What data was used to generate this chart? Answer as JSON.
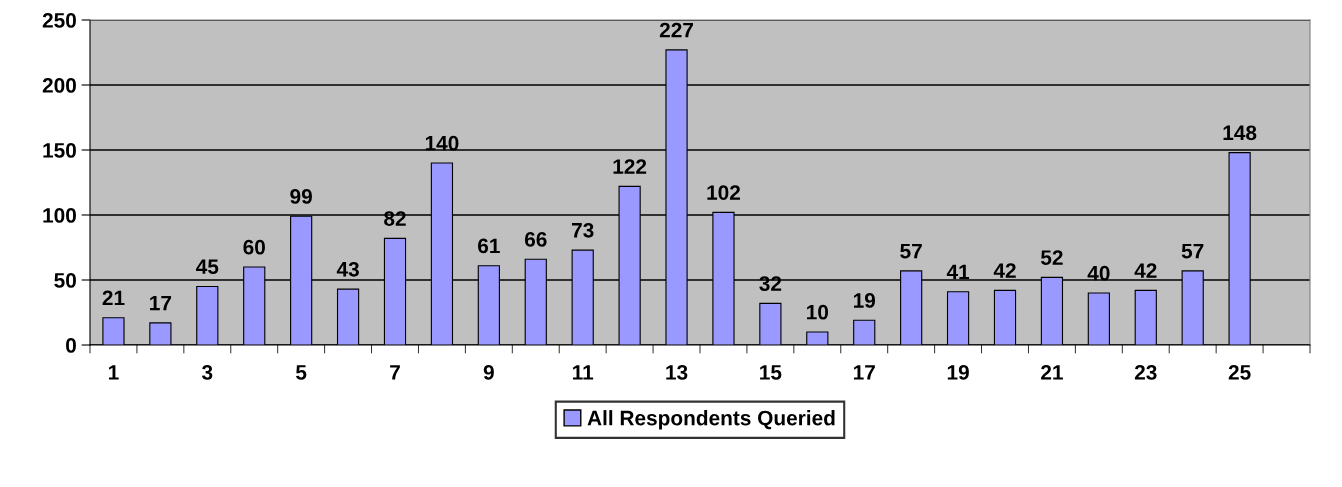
{
  "chart_data": {
    "type": "bar",
    "categories": [
      "1",
      null,
      "3",
      null,
      "5",
      null,
      "7",
      null,
      "9",
      null,
      "11",
      null,
      "13",
      null,
      "15",
      null,
      "17",
      null,
      "19",
      null,
      "21",
      null,
      "23",
      null,
      "25",
      null
    ],
    "series": [
      {
        "name": "All Respondents Queried",
        "color": "#9999ff",
        "values": [
          21,
          17,
          45,
          60,
          99,
          43,
          82,
          140,
          61,
          66,
          73,
          122,
          227,
          102,
          32,
          10,
          19,
          57,
          41,
          42,
          52,
          40,
          42,
          57,
          148,
          null
        ]
      }
    ],
    "ylim": [
      0,
      250
    ],
    "yticks": [
      0,
      50,
      100,
      150,
      200,
      250
    ],
    "grid": "y",
    "legend": "bottom",
    "data_labels": true
  }
}
